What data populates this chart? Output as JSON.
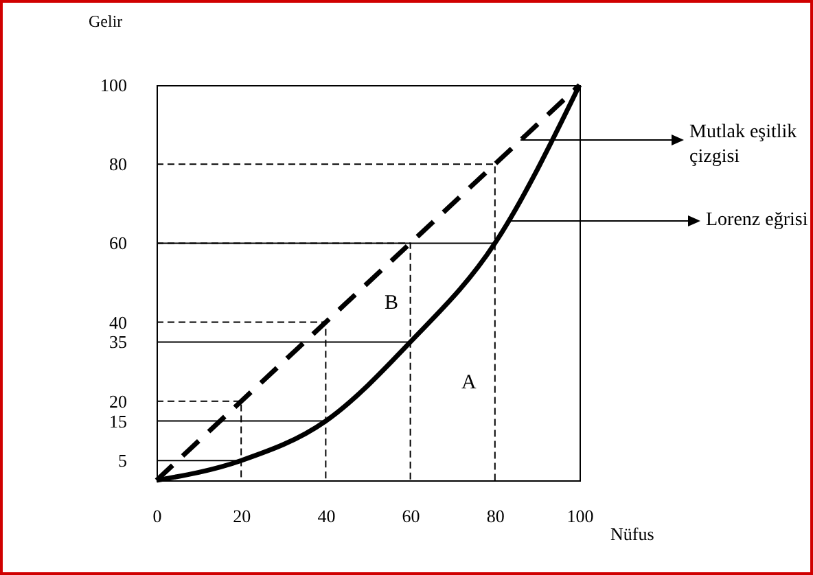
{
  "chart_data": {
    "type": "line",
    "xlabel": "Nüfus",
    "ylabel": "Gelir",
    "xlim": [
      0,
      100
    ],
    "ylim": [
      0,
      100
    ],
    "xticks": [
      0,
      20,
      40,
      60,
      80,
      100
    ],
    "yticks": [
      5,
      15,
      20,
      35,
      40,
      60,
      80,
      100
    ],
    "grid": false,
    "legend": "right",
    "annotations": [
      "B",
      "A"
    ],
    "series": [
      {
        "name": "Mutlak eşitlik çizgisi",
        "color": "#000000",
        "line_style": "dashed",
        "x": [
          0,
          100
        ],
        "values": [
          0,
          100
        ]
      },
      {
        "name": "Lorenz eğrisi",
        "color": "#000000",
        "line_style": "solid",
        "x": [
          0,
          20,
          40,
          60,
          80,
          100
        ],
        "values": [
          0,
          5,
          15,
          35,
          60,
          100
        ]
      },
      {
        "color": "#000000",
        "line_style": "dashed",
        "x": [
          0,
          20,
          20
        ],
        "values": [
          20,
          20,
          0
        ]
      },
      {
        "color": "#000000",
        "line_style": "dashed",
        "x": [
          0,
          40,
          40
        ],
        "values": [
          40,
          40,
          0
        ]
      },
      {
        "color": "#000000",
        "line_style": "dashed",
        "x": [
          0,
          60,
          60
        ],
        "values": [
          60,
          60,
          0
        ]
      },
      {
        "color": "#000000",
        "line_style": "dashed",
        "x": [
          0,
          80,
          80
        ],
        "values": [
          80,
          80,
          0
        ]
      },
      {
        "color": "#000000",
        "line_style": "solid",
        "x": [
          0,
          20
        ],
        "values": [
          5,
          5
        ]
      },
      {
        "color": "#000000",
        "line_style": "solid",
        "x": [
          0,
          40
        ],
        "values": [
          15,
          15
        ]
      },
      {
        "color": "#000000",
        "line_style": "solid",
        "x": [
          0,
          60
        ],
        "values": [
          35,
          35
        ]
      },
      {
        "color": "#000000",
        "line_style": "solid",
        "x": [
          0,
          80
        ],
        "values": [
          60,
          60
        ]
      }
    ]
  }
}
